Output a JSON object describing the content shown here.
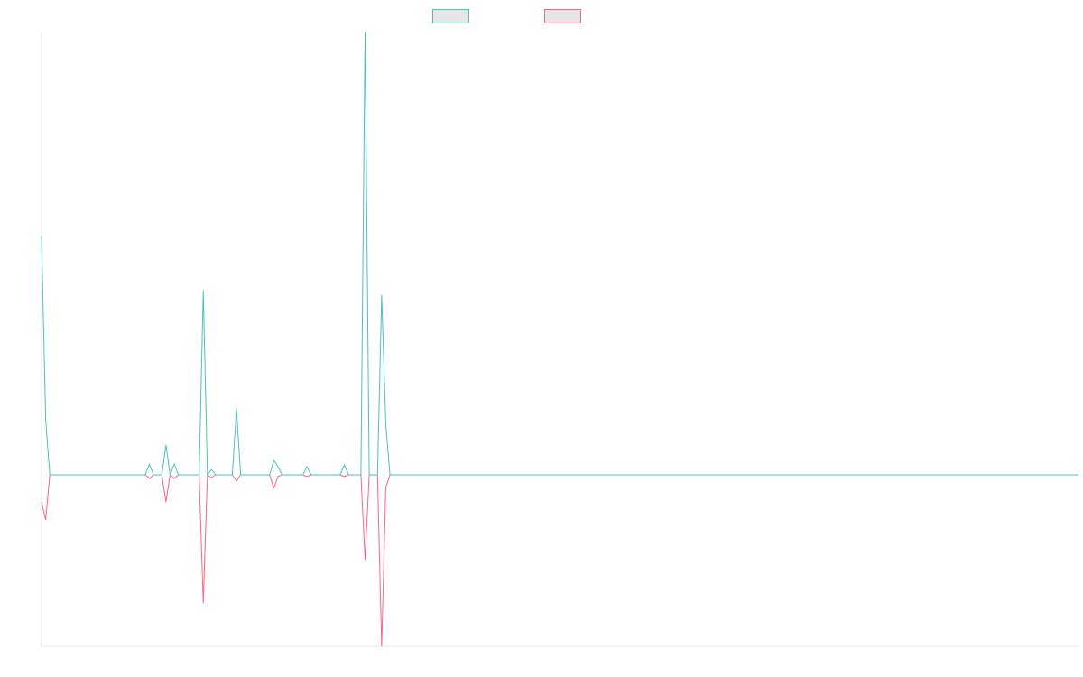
{
  "chart_data": {
    "type": "line",
    "categories": [
      null,
      null,
      null,
      null,
      null,
      null,
      null,
      null,
      null,
      null,
      null,
      null,
      null,
      null,
      null,
      null,
      null,
      null,
      null,
      null,
      null,
      null,
      null,
      null,
      null,
      null,
      null,
      null,
      null,
      null,
      null,
      null,
      null,
      null,
      null,
      null,
      null,
      null,
      null,
      null,
      null,
      null,
      null,
      null,
      null,
      null,
      null,
      null,
      null,
      null,
      null,
      null,
      null,
      null,
      null,
      null,
      null,
      null,
      null,
      null,
      null,
      null,
      null,
      null,
      null,
      null,
      null,
      null,
      null,
      null,
      null,
      null,
      null,
      null,
      null,
      null,
      null,
      null,
      null,
      null,
      null,
      null,
      null,
      null,
      null,
      null,
      null,
      null,
      null,
      null,
      null,
      null,
      null,
      null,
      null,
      null,
      null,
      null,
      null,
      null,
      null,
      null,
      null,
      null,
      null,
      null,
      null,
      null,
      null,
      null,
      null,
      null,
      null,
      null,
      null,
      null,
      null,
      null,
      null,
      null,
      null,
      null,
      null,
      null,
      null,
      null,
      null,
      null,
      null,
      null,
      null,
      null,
      null,
      null,
      null,
      null,
      null,
      null,
      null,
      null,
      null,
      null,
      null,
      null,
      null,
      null,
      null,
      null,
      null,
      null,
      null,
      null,
      null,
      null,
      null,
      null,
      null,
      null,
      null,
      null,
      null,
      null,
      null,
      null,
      null,
      null,
      null,
      null,
      null,
      null,
      null,
      null,
      null,
      null,
      null,
      null,
      null,
      null,
      null,
      null,
      null,
      null,
      null,
      null,
      null,
      null,
      null,
      null,
      null,
      null,
      null,
      null,
      null,
      null,
      null,
      null,
      null,
      null,
      null,
      null,
      null,
      null,
      null,
      null,
      null,
      null,
      null,
      null,
      null,
      null,
      null,
      null,
      null,
      null,
      null,
      null,
      null,
      null,
      null,
      null,
      null,
      null,
      null,
      null,
      null,
      null,
      null,
      null,
      null,
      null,
      null,
      null,
      null,
      null,
      null,
      null,
      null,
      null,
      null,
      null,
      null,
      null,
      null,
      null,
      null,
      null,
      null,
      null,
      null,
      null,
      null
    ],
    "series": [
      {
        "color": "#4bc0c0",
        "values": [
          26.4,
          6.1,
          0,
          0,
          0,
          0,
          0,
          0,
          0,
          0,
          0,
          0,
          0,
          0,
          0,
          0,
          0,
          0,
          0,
          0,
          0,
          0,
          0,
          0,
          0,
          0,
          1.2,
          0,
          0,
          0,
          3.3,
          0,
          1.2,
          0,
          0,
          0,
          0,
          0,
          0,
          20.4,
          0,
          0.6,
          0,
          0,
          0,
          0,
          0,
          7.3,
          0,
          0,
          0,
          0,
          0,
          0,
          0,
          0,
          1.6,
          0.9,
          0,
          0,
          0,
          0,
          0,
          0,
          0.9,
          0,
          0,
          0,
          0,
          0,
          0,
          0,
          0,
          1.1,
          0,
          0,
          0,
          0,
          49,
          0,
          0,
          0,
          19.9,
          5.6,
          0,
          0,
          0,
          0,
          0,
          0,
          0,
          0,
          0,
          0,
          0,
          0,
          0,
          0,
          0,
          0,
          0,
          0,
          0,
          0,
          0,
          0,
          0,
          0,
          0,
          0,
          0,
          0,
          0,
          0,
          0,
          0,
          0,
          0,
          0,
          0,
          0,
          0,
          0,
          0,
          0,
          0,
          0,
          0,
          0,
          0,
          0,
          0,
          0,
          0,
          0,
          0,
          0,
          0,
          0,
          0,
          0,
          0,
          0,
          0,
          0,
          0,
          0,
          0,
          0,
          0,
          0,
          0,
          0,
          0,
          0,
          0,
          0,
          0,
          0,
          0,
          0,
          0,
          0,
          0,
          0,
          0,
          0,
          0,
          0,
          0,
          0,
          0,
          0,
          0,
          0,
          0,
          0,
          0,
          0,
          0,
          0,
          0,
          0,
          0,
          0,
          0,
          0,
          0,
          0,
          0,
          0,
          0,
          0,
          0,
          0,
          0,
          0,
          0,
          0,
          0,
          0,
          0,
          0,
          0,
          0,
          0,
          0,
          0,
          0,
          0,
          0,
          0,
          0,
          0,
          0,
          0,
          0,
          0,
          0,
          0,
          0,
          0,
          0,
          0,
          0,
          0,
          0,
          0,
          0,
          0,
          0,
          0,
          0,
          0,
          0,
          0,
          0,
          0,
          0,
          0,
          0,
          0,
          0,
          0,
          0,
          0,
          0,
          0,
          0,
          0,
          0
        ]
      },
      {
        "color": "#ff6384",
        "values": [
          -3,
          -5,
          0,
          0,
          0,
          0,
          0,
          0,
          0,
          0,
          0,
          0,
          0,
          0,
          0,
          0,
          0,
          0,
          0,
          0,
          0,
          0,
          0,
          0,
          0,
          0,
          -0.4,
          0,
          0,
          0,
          -3,
          0,
          -0.4,
          0,
          0,
          0,
          0,
          0,
          0,
          -14.2,
          0,
          -0.3,
          0,
          0,
          0,
          0,
          0,
          -0.7,
          0,
          0,
          0,
          0,
          0,
          0,
          0,
          0,
          -1.5,
          -0.2,
          0,
          0,
          0,
          0,
          0,
          0,
          -0.2,
          0,
          0,
          0,
          0,
          0,
          0,
          0,
          0,
          -0.2,
          0,
          0,
          0,
          0,
          -9.4,
          0,
          0,
          0,
          -19,
          -1.4,
          0,
          0,
          0,
          0,
          0,
          0,
          0,
          0,
          0,
          0,
          0,
          0,
          0,
          0,
          0,
          0,
          0,
          0,
          0,
          0,
          0,
          0,
          0,
          0,
          0,
          0,
          0,
          0,
          0,
          0,
          0,
          0,
          0,
          0,
          0,
          0,
          0,
          0,
          0,
          0,
          0,
          0,
          0,
          0,
          0,
          0,
          0,
          0,
          0,
          0,
          0,
          0,
          0,
          0,
          0,
          0,
          0,
          0,
          0,
          0,
          0,
          0,
          0,
          0,
          0,
          0,
          0,
          0,
          0,
          0,
          0,
          0,
          0,
          0,
          0,
          0,
          0,
          0,
          0,
          0,
          0,
          0,
          0,
          0,
          0,
          0,
          0,
          0,
          0,
          0,
          0,
          0,
          0,
          0,
          0,
          0,
          0,
          0,
          0,
          0,
          0,
          0,
          0,
          0,
          0,
          0,
          0,
          0,
          0,
          0,
          0,
          0,
          0,
          0,
          0,
          0,
          0,
          0,
          0,
          0,
          0,
          0,
          0,
          0,
          0,
          0,
          0,
          0,
          0,
          0,
          0,
          0,
          0,
          0,
          0,
          0,
          0,
          0,
          0,
          0,
          0,
          0,
          0,
          0,
          0,
          0,
          0,
          0,
          0,
          0,
          0,
          0,
          0,
          0,
          0,
          0,
          0,
          0,
          0,
          0,
          0,
          0,
          0,
          0,
          0,
          0,
          0
        ]
      }
    ],
    "ylim": [
      -19,
      49
    ]
  }
}
